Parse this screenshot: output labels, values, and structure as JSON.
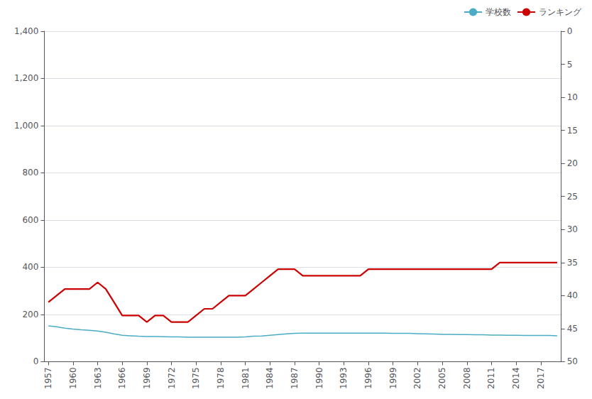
{
  "chart_data": {
    "type": "line",
    "x": [
      1957,
      1958,
      1959,
      1960,
      1961,
      1962,
      1963,
      1964,
      1965,
      1966,
      1967,
      1968,
      1969,
      1970,
      1971,
      1972,
      1973,
      1974,
      1975,
      1976,
      1977,
      1978,
      1979,
      1980,
      1981,
      1982,
      1983,
      1984,
      1985,
      1986,
      1987,
      1988,
      1989,
      1990,
      1991,
      1992,
      1993,
      1994,
      1995,
      1996,
      1997,
      1998,
      1999,
      2000,
      2001,
      2002,
      2003,
      2004,
      2005,
      2006,
      2007,
      2008,
      2009,
      2010,
      2011,
      2012,
      2013,
      2014,
      2015,
      2016,
      2017,
      2018,
      2019
    ],
    "xlim": [
      1956.5,
      2019.5
    ],
    "xticks": [
      1957,
      1960,
      1963,
      1966,
      1969,
      1972,
      1975,
      1978,
      1981,
      1984,
      1987,
      1990,
      1993,
      1996,
      1999,
      2002,
      2005,
      2008,
      2011,
      2014,
      2017
    ],
    "ylim": [
      0,
      1400
    ],
    "yticks": [
      0,
      200,
      400,
      600,
      800,
      {
        "value": 1000,
        "label": "1,000"
      },
      {
        "value": 1200,
        "label": "1,200"
      },
      {
        "value": 1400,
        "label": "1,400"
      }
    ],
    "y2lim": [
      50,
      0
    ],
    "y2ticks": [
      0,
      5,
      10,
      15,
      20,
      25,
      30,
      35,
      40,
      45,
      50
    ],
    "grid": true,
    "legend": "upper right",
    "series": [
      {
        "name": "学校数",
        "color": "#4bacc6",
        "values": [
          152,
          148,
          142,
          138,
          135,
          133,
          130,
          125,
          118,
          112,
          110,
          108,
          107,
          107,
          106,
          105,
          105,
          104,
          104,
          104,
          104,
          104,
          104,
          104,
          105,
          108,
          109,
          112,
          115,
          118,
          120,
          121,
          121,
          121,
          121,
          121,
          121,
          121,
          121,
          121,
          121,
          121,
          120,
          120,
          120,
          119,
          118,
          117,
          116,
          116,
          115,
          115,
          114,
          114,
          113,
          113,
          112,
          112,
          111,
          111,
          111,
          111,
          110
        ]
      },
      {
        "name": "ランキング",
        "color": "#cc0000",
        "axis": "y2",
        "values": [
          41,
          40,
          39,
          39,
          39,
          39,
          38,
          39,
          41,
          43,
          43,
          43,
          44,
          43,
          43,
          44,
          44,
          44,
          43,
          42,
          42,
          41,
          40,
          40,
          40,
          39,
          38,
          37,
          36,
          36,
          36,
          37,
          37,
          37,
          37,
          37,
          37,
          37,
          37,
          36,
          36,
          36,
          36,
          36,
          36,
          36,
          36,
          36,
          36,
          36,
          36,
          36,
          36,
          36,
          36,
          35,
          35,
          35,
          35,
          35,
          35,
          35,
          35
        ]
      }
    ]
  }
}
